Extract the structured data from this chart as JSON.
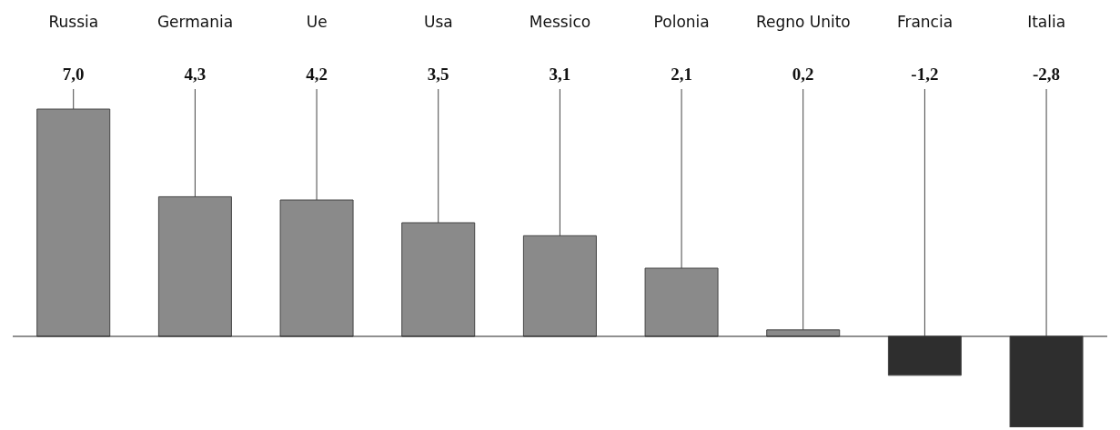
{
  "chart_data": {
    "type": "bar",
    "categories": [
      "Russia",
      "Germania",
      "Ue",
      "Usa",
      "Messico",
      "Polonia",
      "Regno Unito",
      "Francia",
      "Italia"
    ],
    "values": [
      7.0,
      4.3,
      4.2,
      3.5,
      3.1,
      2.1,
      0.2,
      -1.2,
      -2.8
    ],
    "value_labels": [
      "7,0",
      "4,3",
      "4,2",
      "3,5",
      "3,1",
      "2,1",
      "0,2",
      "-1,2",
      "-2,8"
    ],
    "colors": [
      "#8a8a8a",
      "#8a8a8a",
      "#8a8a8a",
      "#8a8a8a",
      "#8a8a8a",
      "#8a8a8a",
      "#8a8a8a",
      "#2e2e2e",
      "#2e2e2e"
    ],
    "grid": "x",
    "legend": false
  }
}
